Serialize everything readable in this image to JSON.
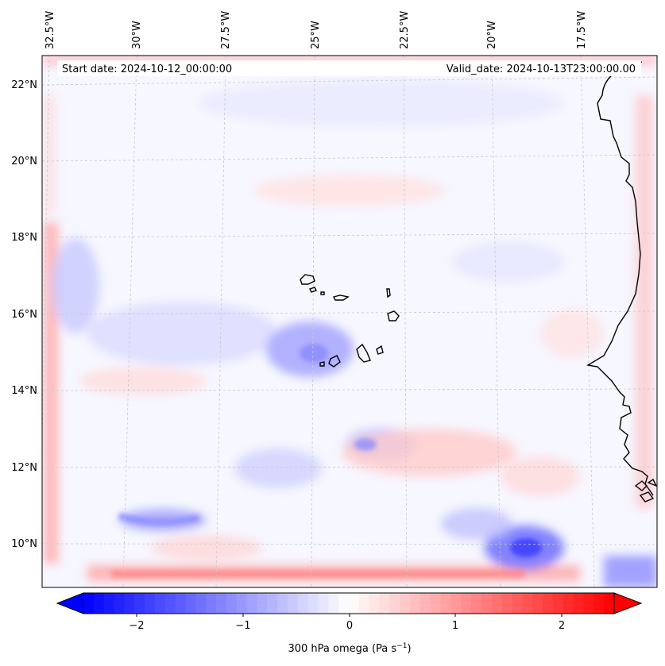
{
  "map": {
    "header": {
      "start": "Start date: 2024-10-12_00:00:00",
      "valid": "Valid_date: 2024-10-13T23:00:00.00"
    },
    "lon_labels": [
      "32.5°W",
      "30°W",
      "27.5°W",
      "25°W",
      "22.5°W",
      "20°W",
      "17.5°W"
    ],
    "lat_labels": [
      "22°N",
      "20°N",
      "18°N",
      "16°N",
      "14°N",
      "12°N",
      "10°N"
    ],
    "features": [
      "Cape Verde islands",
      "West African coastline"
    ]
  },
  "colorbar": {
    "label_text": "300 hPa omega (Pa s",
    "label_exp": "−1",
    "label_close": ")",
    "ticks": [
      "−2",
      "−1",
      "0",
      "1",
      "2"
    ],
    "range": [
      -2.6,
      2.6
    ],
    "cmap": "bwr"
  },
  "colors": {
    "negative": "#0000ff",
    "neutral": "#ffffff",
    "positive": "#ff0000",
    "grid": "#c8c8c8",
    "coast": "#000000"
  }
}
